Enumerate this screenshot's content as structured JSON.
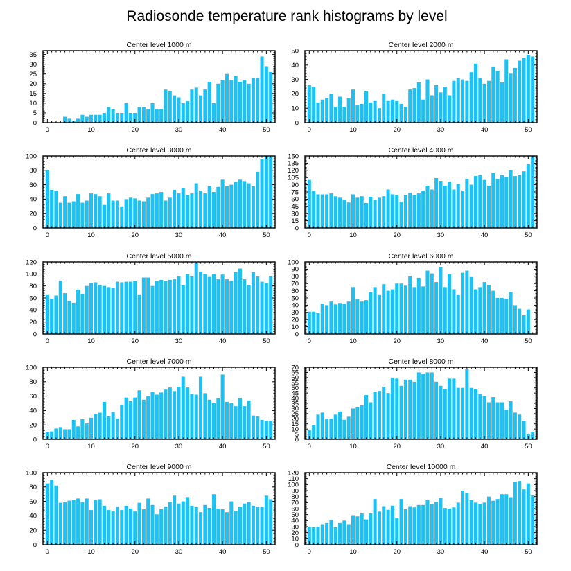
{
  "title": "Radiosonde temperature rank histograms by level",
  "colors": {
    "bar": "#1ec1f4",
    "axis": "#000000"
  },
  "chart_data": [
    {
      "type": "bar",
      "title": "Center level 1000 m",
      "x": [
        0,
        1,
        2,
        3,
        4,
        5,
        6,
        7,
        8,
        9,
        10,
        11,
        12,
        13,
        14,
        15,
        16,
        17,
        18,
        19,
        20,
        21,
        22,
        23,
        24,
        25,
        26,
        27,
        28,
        29,
        30,
        31,
        32,
        33,
        34,
        35,
        36,
        37,
        38,
        39,
        40,
        41,
        42,
        43,
        44,
        45,
        46,
        47,
        48,
        49,
        50,
        51
      ],
      "values": [
        0,
        0,
        0,
        0,
        3,
        2,
        1,
        2,
        4,
        3,
        4,
        4,
        4,
        5,
        8,
        7,
        5,
        5,
        10,
        5,
        5,
        8,
        8,
        7,
        10,
        7,
        7,
        17,
        16,
        14,
        13,
        10,
        11,
        17,
        18,
        14,
        17,
        21,
        10,
        20,
        22,
        25,
        22,
        24,
        21,
        22,
        20,
        23,
        23,
        34,
        29,
        26
      ],
      "xticks": [
        0,
        10,
        20,
        30,
        40,
        50
      ],
      "yticks": [
        0,
        5,
        10,
        15,
        20,
        25,
        30,
        35
      ],
      "xlim": [
        -1,
        52
      ],
      "ylim": [
        0,
        37
      ]
    },
    {
      "type": "bar",
      "title": "Center level 2000 m",
      "x": [
        0,
        1,
        2,
        3,
        4,
        5,
        6,
        7,
        8,
        9,
        10,
        11,
        12,
        13,
        14,
        15,
        16,
        17,
        18,
        19,
        20,
        21,
        22,
        23,
        24,
        25,
        26,
        27,
        28,
        29,
        30,
        31,
        32,
        33,
        34,
        35,
        36,
        37,
        38,
        39,
        40,
        41,
        42,
        43,
        44,
        45,
        46,
        47,
        48,
        49,
        50,
        51
      ],
      "values": [
        26,
        25,
        14,
        16,
        17,
        20,
        11,
        18,
        11,
        17,
        23,
        12,
        13,
        22,
        14,
        15,
        10,
        20,
        15,
        16,
        15,
        13,
        11,
        23,
        24,
        28,
        16,
        30,
        19,
        26,
        21,
        25,
        19,
        29,
        31,
        30,
        29,
        35,
        41,
        31,
        27,
        29,
        39,
        36,
        28,
        44,
        34,
        38,
        43,
        45,
        47,
        46
      ],
      "xticks": [
        0,
        10,
        20,
        30,
        40,
        50
      ],
      "yticks": [
        0,
        10,
        20,
        30,
        40,
        50
      ],
      "xlim": [
        -1,
        52
      ],
      "ylim": [
        0,
        50
      ]
    },
    {
      "type": "bar",
      "title": "Center level 3000 m",
      "x": [
        0,
        1,
        2,
        3,
        4,
        5,
        6,
        7,
        8,
        9,
        10,
        11,
        12,
        13,
        14,
        15,
        16,
        17,
        18,
        19,
        20,
        21,
        22,
        23,
        24,
        25,
        26,
        27,
        28,
        29,
        30,
        31,
        32,
        33,
        34,
        35,
        36,
        37,
        38,
        39,
        40,
        41,
        42,
        43,
        44,
        45,
        46,
        47,
        48,
        49,
        50,
        51
      ],
      "values": [
        80,
        53,
        52,
        35,
        44,
        35,
        37,
        47,
        35,
        38,
        48,
        47,
        44,
        32,
        48,
        38,
        38,
        30,
        40,
        42,
        41,
        38,
        37,
        42,
        47,
        48,
        50,
        38,
        42,
        53,
        48,
        55,
        46,
        48,
        62,
        52,
        48,
        58,
        50,
        57,
        67,
        58,
        60,
        64,
        67,
        65,
        62,
        58,
        78,
        96,
        100,
        99
      ],
      "xticks": [
        0,
        10,
        20,
        30,
        40,
        50
      ],
      "yticks": [
        0,
        20,
        40,
        60,
        80,
        100
      ],
      "xlim": [
        -1,
        52
      ],
      "ylim": [
        0,
        100
      ]
    },
    {
      "type": "bar",
      "title": "Center level 4000 m",
      "x": [
        0,
        1,
        2,
        3,
        4,
        5,
        6,
        7,
        8,
        9,
        10,
        11,
        12,
        13,
        14,
        15,
        16,
        17,
        18,
        19,
        20,
        21,
        22,
        23,
        24,
        25,
        26,
        27,
        28,
        29,
        30,
        31,
        32,
        33,
        34,
        35,
        36,
        37,
        38,
        39,
        40,
        41,
        42,
        43,
        44,
        45,
        46,
        47,
        48,
        49,
        50,
        51
      ],
      "values": [
        100,
        78,
        70,
        70,
        70,
        72,
        66,
        63,
        59,
        53,
        70,
        63,
        66,
        52,
        65,
        59,
        63,
        66,
        80,
        70,
        68,
        55,
        69,
        73,
        68,
        72,
        78,
        88,
        80,
        104,
        98,
        88,
        96,
        80,
        91,
        78,
        102,
        90,
        108,
        110,
        100,
        88,
        115,
        102,
        110,
        106,
        120,
        108,
        110,
        118,
        133,
        150
      ],
      "xticks": [
        0,
        10,
        20,
        30,
        40,
        50
      ],
      "yticks": [
        0,
        15,
        30,
        45,
        60,
        75,
        90,
        105,
        120,
        135,
        150
      ],
      "xlim": [
        -1,
        52
      ],
      "ylim": [
        0,
        150
      ]
    },
    {
      "type": "bar",
      "title": "Center level 5000 m",
      "x": [
        0,
        1,
        2,
        3,
        4,
        5,
        6,
        7,
        8,
        9,
        10,
        11,
        12,
        13,
        14,
        15,
        16,
        17,
        18,
        19,
        20,
        21,
        22,
        23,
        24,
        25,
        26,
        27,
        28,
        29,
        30,
        31,
        32,
        33,
        34,
        35,
        36,
        37,
        38,
        39,
        40,
        41,
        42,
        43,
        44,
        45,
        46,
        47,
        48,
        49,
        50,
        51
      ],
      "values": [
        66,
        58,
        64,
        89,
        68,
        55,
        52,
        74,
        67,
        80,
        85,
        86,
        82,
        80,
        78,
        77,
        87,
        86,
        87,
        87,
        88,
        66,
        94,
        94,
        80,
        88,
        90,
        88,
        90,
        91,
        96,
        81,
        100,
        96,
        118,
        104,
        100,
        95,
        100,
        91,
        99,
        91,
        89,
        103,
        109,
        91,
        82,
        103,
        96,
        87,
        85,
        96
      ],
      "xticks": [
        0,
        10,
        20,
        30,
        40,
        50
      ],
      "yticks": [
        0,
        20,
        40,
        60,
        80,
        100,
        120
      ],
      "xlim": [
        -1,
        52
      ],
      "ylim": [
        0,
        120
      ]
    },
    {
      "type": "bar",
      "title": "Center level 6000 m",
      "x": [
        0,
        1,
        2,
        3,
        4,
        5,
        6,
        7,
        8,
        9,
        10,
        11,
        12,
        13,
        14,
        15,
        16,
        17,
        18,
        19,
        20,
        21,
        22,
        23,
        24,
        25,
        26,
        27,
        28,
        29,
        30,
        31,
        32,
        33,
        34,
        35,
        36,
        37,
        38,
        39,
        40,
        41,
        42,
        43,
        44,
        45,
        46,
        47,
        48,
        49,
        50,
        51
      ],
      "values": [
        31,
        31,
        29,
        42,
        40,
        45,
        41,
        43,
        42,
        45,
        65,
        48,
        45,
        47,
        58,
        65,
        55,
        69,
        60,
        62,
        70,
        70,
        67,
        80,
        65,
        78,
        66,
        88,
        84,
        72,
        93,
        65,
        83,
        62,
        55,
        85,
        88,
        79,
        62,
        65,
        72,
        68,
        60,
        50,
        50,
        49,
        58,
        40,
        35,
        26,
        34,
        0
      ],
      "xticks": [
        0,
        10,
        20,
        30,
        40,
        50
      ],
      "yticks": [
        0,
        10,
        20,
        30,
        40,
        50,
        60,
        70,
        80,
        90,
        100
      ],
      "xlim": [
        -1,
        52
      ],
      "ylim": [
        0,
        100
      ]
    },
    {
      "type": "bar",
      "title": "Center level 7000 m",
      "x": [
        0,
        1,
        2,
        3,
        4,
        5,
        6,
        7,
        8,
        9,
        10,
        11,
        12,
        13,
        14,
        15,
        16,
        17,
        18,
        19,
        20,
        21,
        22,
        23,
        24,
        25,
        26,
        27,
        28,
        29,
        30,
        31,
        32,
        33,
        34,
        35,
        36,
        37,
        38,
        39,
        40,
        41,
        42,
        43,
        44,
        45,
        46,
        47,
        48,
        49,
        50,
        51
      ],
      "values": [
        10,
        11,
        15,
        17,
        14,
        14,
        27,
        18,
        28,
        22,
        30,
        35,
        37,
        52,
        32,
        38,
        29,
        48,
        58,
        53,
        58,
        68,
        55,
        60,
        66,
        62,
        65,
        69,
        72,
        67,
        73,
        87,
        72,
        63,
        62,
        87,
        64,
        55,
        50,
        57,
        90,
        52,
        50,
        46,
        57,
        46,
        54,
        33,
        32,
        27,
        26,
        25
      ],
      "xticks": [
        0,
        10,
        20,
        30,
        40,
        50
      ],
      "yticks": [
        0,
        20,
        40,
        60,
        80,
        100
      ],
      "xlim": [
        -1,
        52
      ],
      "ylim": [
        0,
        100
      ]
    },
    {
      "type": "bar",
      "title": "Center level 8000 m",
      "x": [
        0,
        1,
        2,
        3,
        4,
        5,
        6,
        7,
        8,
        9,
        10,
        11,
        12,
        13,
        14,
        15,
        16,
        17,
        18,
        19,
        20,
        21,
        22,
        23,
        24,
        25,
        26,
        27,
        28,
        29,
        30,
        31,
        32,
        33,
        34,
        35,
        36,
        37,
        38,
        39,
        40,
        41,
        42,
        43,
        44,
        45,
        46,
        47,
        48,
        49,
        50,
        51
      ],
      "values": [
        9,
        14,
        24,
        26,
        20,
        20,
        24,
        27,
        19,
        22,
        30,
        31,
        33,
        43,
        36,
        46,
        47,
        51,
        45,
        60,
        59,
        52,
        58,
        58,
        56,
        65,
        64,
        65,
        65,
        56,
        52,
        49,
        59,
        59,
        50,
        50,
        68,
        50,
        49,
        44,
        42,
        36,
        41,
        36,
        36,
        29,
        37,
        26,
        24,
        18,
        5,
        7
      ],
      "xticks": [
        0,
        10,
        20,
        30,
        40,
        50
      ],
      "yticks": [
        0,
        5,
        10,
        15,
        20,
        25,
        30,
        35,
        40,
        45,
        50,
        55,
        60,
        65,
        70
      ],
      "xlim": [
        -1,
        52
      ],
      "ylim": [
        0,
        70
      ]
    },
    {
      "type": "bar",
      "title": "Center level 9000 m",
      "x": [
        0,
        1,
        2,
        3,
        4,
        5,
        6,
        7,
        8,
        9,
        10,
        11,
        12,
        13,
        14,
        15,
        16,
        17,
        18,
        19,
        20,
        21,
        22,
        23,
        24,
        25,
        26,
        27,
        28,
        29,
        30,
        31,
        32,
        33,
        34,
        35,
        36,
        37,
        38,
        39,
        40,
        41,
        42,
        43,
        44,
        45,
        46,
        47,
        48,
        49,
        50,
        51
      ],
      "values": [
        85,
        90,
        82,
        58,
        59,
        61,
        62,
        64,
        59,
        64,
        48,
        62,
        63,
        54,
        48,
        47,
        53,
        48,
        54,
        50,
        46,
        58,
        49,
        64,
        55,
        42,
        49,
        53,
        59,
        68,
        57,
        60,
        66,
        54,
        52,
        45,
        55,
        51,
        70,
        50,
        49,
        45,
        60,
        47,
        52,
        57,
        59,
        54,
        53,
        52,
        68,
        63
      ],
      "xticks": [
        0,
        10,
        20,
        30,
        40,
        50
      ],
      "yticks": [
        0,
        20,
        40,
        60,
        80,
        100
      ],
      "xlim": [
        -1,
        52
      ],
      "ylim": [
        0,
        100
      ]
    },
    {
      "type": "bar",
      "title": "Center level 10000 m",
      "x": [
        0,
        1,
        2,
        3,
        4,
        5,
        6,
        7,
        8,
        9,
        10,
        11,
        12,
        13,
        14,
        15,
        16,
        17,
        18,
        19,
        20,
        21,
        22,
        23,
        24,
        25,
        26,
        27,
        28,
        29,
        30,
        31,
        32,
        33,
        34,
        35,
        36,
        37,
        38,
        39,
        40,
        41,
        42,
        43,
        44,
        45,
        46,
        47,
        48,
        49,
        50,
        51
      ],
      "values": [
        30,
        29,
        30,
        34,
        36,
        41,
        29,
        36,
        40,
        34,
        49,
        47,
        52,
        42,
        52,
        76,
        55,
        64,
        58,
        65,
        45,
        76,
        59,
        64,
        62,
        66,
        66,
        75,
        67,
        71,
        78,
        61,
        60,
        62,
        70,
        90,
        86,
        74,
        70,
        68,
        70,
        80,
        73,
        76,
        84,
        84,
        79,
        104,
        106,
        92,
        102,
        82
      ],
      "xticks": [
        0,
        10,
        20,
        30,
        40,
        50
      ],
      "yticks": [
        0,
        10,
        20,
        30,
        40,
        50,
        60,
        70,
        80,
        90,
        100,
        110,
        120
      ],
      "xlim": [
        -1,
        52
      ],
      "ylim": [
        0,
        120
      ]
    }
  ]
}
